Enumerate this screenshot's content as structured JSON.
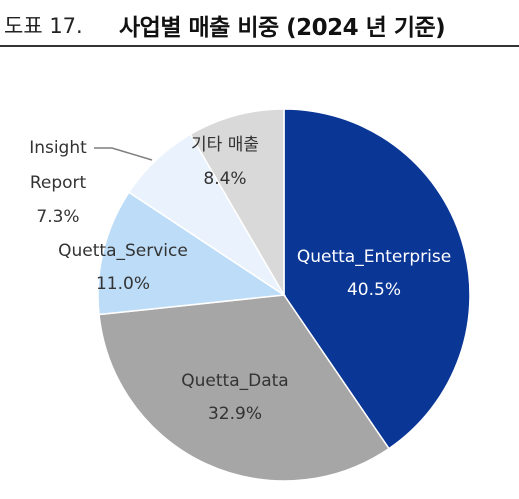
{
  "figure": {
    "number": "도표 17.",
    "title": "사업별 매출 비중 (2024 년 기준)"
  },
  "chart_data": {
    "type": "pie",
    "title": "사업별 매출 비중 (2024 년 기준)",
    "unit": "%",
    "start_angle_deg": 0,
    "direction": "clockwise",
    "slices": [
      {
        "name": "Quetta_Enterprise",
        "value": 40.5,
        "label": "40.5%",
        "color": "#0a3696",
        "text_color": "#ffffff"
      },
      {
        "name": "Quetta_Data",
        "value": 32.9,
        "label": "32.9%",
        "color": "#a6a6a6",
        "text_color": "#333333"
      },
      {
        "name": "Quetta_Service",
        "value": 11.0,
        "label": "11.0%",
        "color": "#bddcf8",
        "text_color": "#333333"
      },
      {
        "name": "Insight Report",
        "name_lines": [
          "Insight",
          "Report"
        ],
        "value": 7.3,
        "label": "7.3%",
        "color": "#eaf3fd",
        "text_color": "#333333"
      },
      {
        "name": "기타 매출",
        "value": 8.4,
        "label": "8.4%",
        "color": "#d9d9d9",
        "text_color": "#333333"
      }
    ]
  }
}
